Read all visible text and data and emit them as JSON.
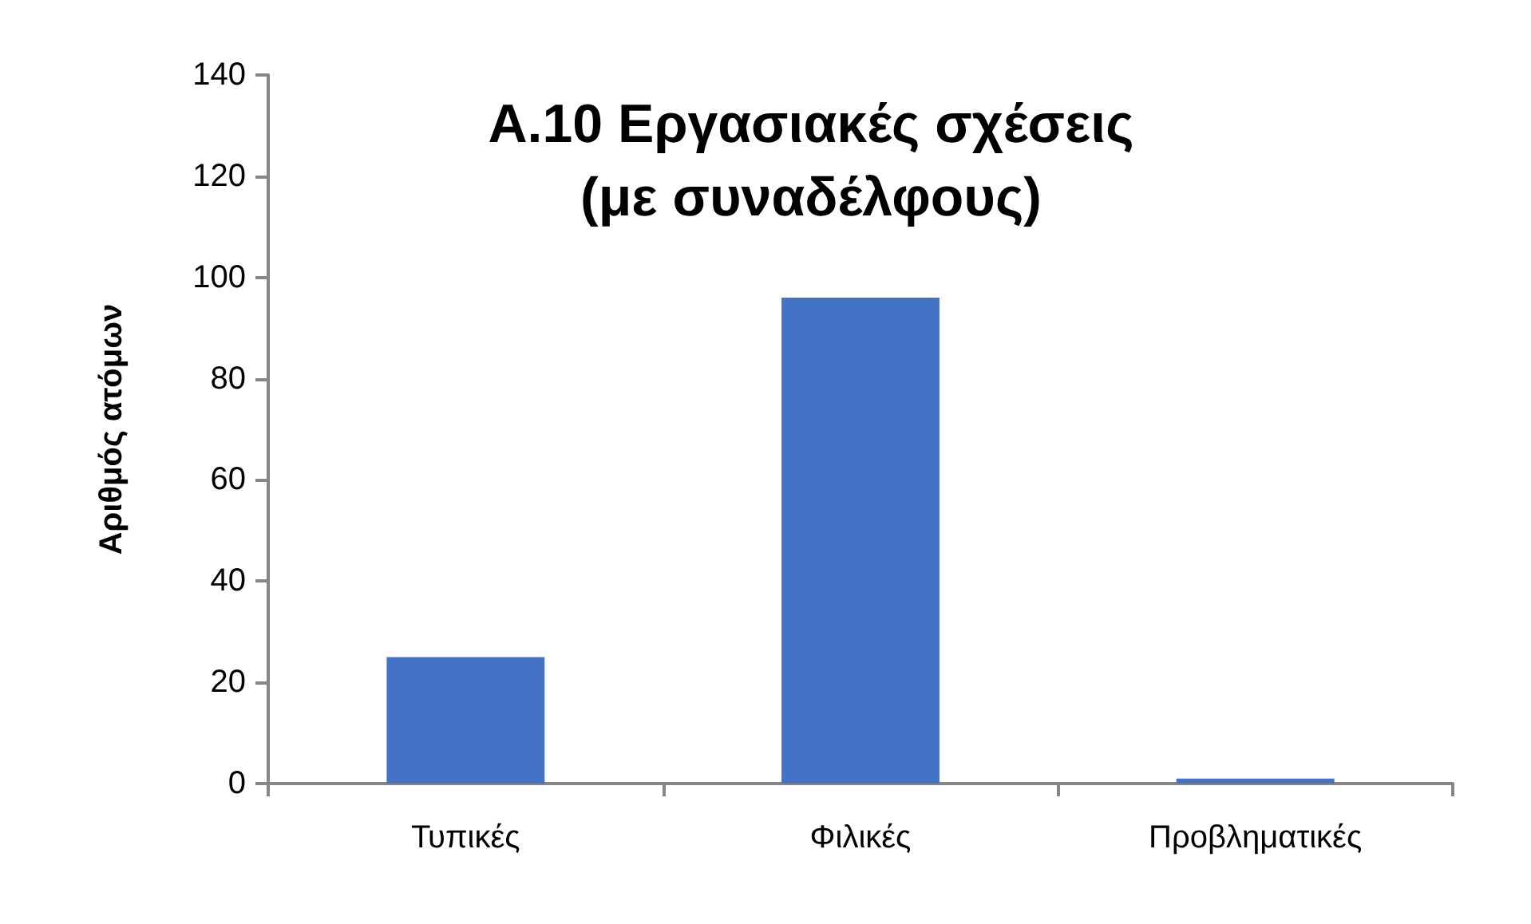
{
  "chart_data": {
    "type": "bar",
    "title": "Α.10 Εργασιακές σχέσεις\n(με συναδέλφους)",
    "ylabel": "Αριθμός ατόμων",
    "categories": [
      "Τυπικές",
      "Φιλικές",
      "Προβληματικές"
    ],
    "values": [
      25,
      96,
      1
    ],
    "color": "#4472c4",
    "ylim": [
      0,
      140
    ],
    "yticks": [
      0,
      20,
      40,
      60,
      80,
      100,
      120,
      140
    ],
    "grid": false
  }
}
